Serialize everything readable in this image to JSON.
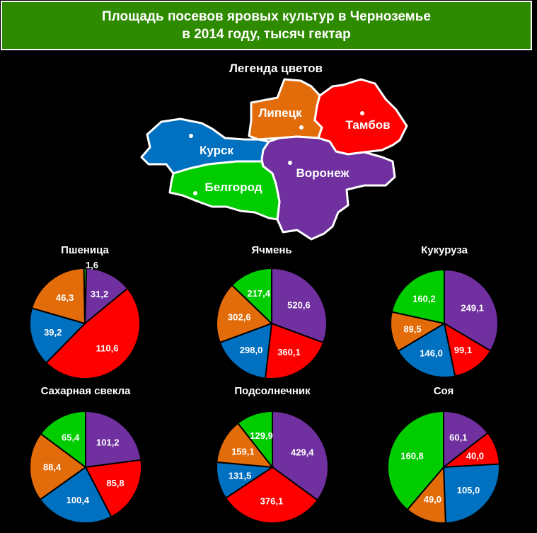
{
  "title_line1": "Площадь посевов яровых культур в Черноземье",
  "title_line2": "в 2014 году, тысяч гектар",
  "legend_title": "Легенда цветов",
  "colors": {
    "Воронеж": "#7030a0",
    "Тамбов": "#ff0000",
    "Курск": "#0070c0",
    "Липецк": "#e36c0a",
    "Белгород": "#00cc00"
  },
  "regions": [
    {
      "name": "Липецк"
    },
    {
      "name": "Тамбов"
    },
    {
      "name": "Курск"
    },
    {
      "name": "Воронеж"
    },
    {
      "name": "Белгород"
    }
  ],
  "chart_data": [
    {
      "type": "pie",
      "title": "Пшеница",
      "slices": [
        {
          "region": "Воронеж",
          "value": 31.2,
          "label": "31,2"
        },
        {
          "region": "Тамбов",
          "value": 110.6,
          "label": "110,6"
        },
        {
          "region": "Курск",
          "value": 39.2,
          "label": "39,2"
        },
        {
          "region": "Липецк",
          "value": 46.3,
          "label": "46,3"
        },
        {
          "region": "Белгород",
          "value": 1.6,
          "label": "1,6"
        }
      ]
    },
    {
      "type": "pie",
      "title": "Ячмень",
      "slices": [
        {
          "region": "Воронеж",
          "value": 520.6,
          "label": "520,6"
        },
        {
          "region": "Тамбов",
          "value": 360.1,
          "label": "360,1"
        },
        {
          "region": "Курск",
          "value": 298.0,
          "label": "298,0"
        },
        {
          "region": "Липецк",
          "value": 302.6,
          "label": "302,6"
        },
        {
          "region": "Белгород",
          "value": 217.4,
          "label": "217,4"
        }
      ]
    },
    {
      "type": "pie",
      "title": "Кукуруза",
      "slices": [
        {
          "region": "Воронеж",
          "value": 249.1,
          "label": "249,1"
        },
        {
          "region": "Тамбов",
          "value": 99.1,
          "label": "99,1"
        },
        {
          "region": "Курск",
          "value": 146.0,
          "label": "146,0"
        },
        {
          "region": "Липецк",
          "value": 89.5,
          "label": "89,5"
        },
        {
          "region": "Белгород",
          "value": 160.2,
          "label": "160,2"
        }
      ]
    },
    {
      "type": "pie",
      "title": "Сахарная свекла",
      "slices": [
        {
          "region": "Воронеж",
          "value": 101.2,
          "label": "101,2"
        },
        {
          "region": "Тамбов",
          "value": 85.8,
          "label": "85,8"
        },
        {
          "region": "Курск",
          "value": 100.4,
          "label": "100,4"
        },
        {
          "region": "Липецк",
          "value": 88.4,
          "label": "88,4"
        },
        {
          "region": "Белгород",
          "value": 65.4,
          "label": "65,4"
        }
      ]
    },
    {
      "type": "pie",
      "title": "Подсолнечник",
      "slices": [
        {
          "region": "Воронеж",
          "value": 429.4,
          "label": "429,4"
        },
        {
          "region": "Тамбов",
          "value": 376.1,
          "label": "376,1"
        },
        {
          "region": "Курск",
          "value": 131.5,
          "label": "131,5"
        },
        {
          "region": "Липецк",
          "value": 159.1,
          "label": "159,1"
        },
        {
          "region": "Белгород",
          "value": 129.9,
          "label": "129,9"
        }
      ]
    },
    {
      "type": "pie",
      "title": "Соя",
      "slices": [
        {
          "region": "Воронеж",
          "value": 60.1,
          "label": "60,1"
        },
        {
          "region": "Тамбов",
          "value": 40.0,
          "label": "40,0"
        },
        {
          "region": "Курск",
          "value": 105.0,
          "label": "105,0"
        },
        {
          "region": "Липецк",
          "value": 49.0,
          "label": "49,0"
        },
        {
          "region": "Белгород",
          "value": 160.8,
          "label": "160,8"
        }
      ]
    }
  ]
}
